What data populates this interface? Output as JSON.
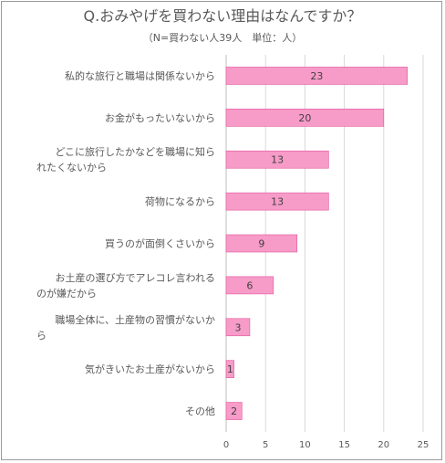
{
  "chart_data": {
    "type": "bar",
    "orientation": "horizontal",
    "title": "Q.おみやげを買わない理由はなんですか？",
    "subtitle": "（N=買わない人39人　単位：人）",
    "categories": [
      [
        "私的な旅行と職場は関係ないから"
      ],
      [
        "お金がもったいないから"
      ],
      [
        "どこに旅行したかなどを職場に知ら",
        "れたくないから"
      ],
      [
        "荷物になるから"
      ],
      [
        "買うのが面倒くさいから"
      ],
      [
        "お土産の選び方でアレコレ言われる",
        "のが嫌だから"
      ],
      [
        "職場全体に、土産物の習慣がないか",
        "ら"
      ],
      [
        "気がきいたお土産がないから"
      ],
      [
        "その他"
      ]
    ],
    "values": [
      23,
      20,
      13,
      13,
      9,
      6,
      3,
      1,
      2
    ],
    "xlim": [
      0,
      25
    ],
    "xticks": [
      0,
      5,
      10,
      15,
      20,
      25
    ],
    "grid": true,
    "bar_color": "#f79bc8",
    "bar_border_color": "#e2559a",
    "grid_color": "#d9d9d9"
  }
}
